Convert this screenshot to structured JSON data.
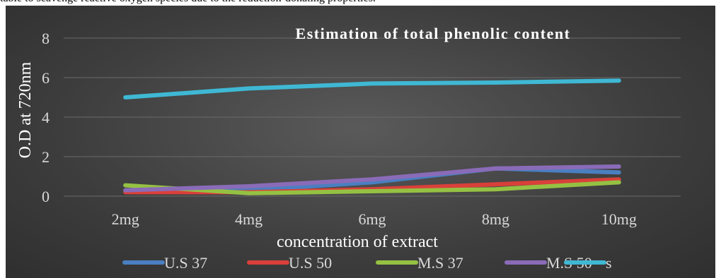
{
  "page_text": "table to scavenge reactive oxygen species due to the reduction-donating properties.",
  "chart_data": {
    "type": "line",
    "title": "Estimation of total phenolic content",
    "xlabel": "concentration  of extract",
    "ylabel": "O.D at 720nm",
    "categories": [
      "2mg",
      "4mg",
      "6mg",
      "8mg",
      "10mg"
    ],
    "ylim": [
      0,
      8
    ],
    "yticks": [
      "0",
      "2",
      "4",
      "6",
      "8"
    ],
    "grid": true,
    "legend": "bottom",
    "series": [
      {
        "name": "U.S 37",
        "color": "#4a7fc1",
        "values": [
          0.25,
          0.3,
          0.7,
          1.4,
          1.2
        ]
      },
      {
        "name": "U.S 50",
        "color": "#d9403a",
        "values": [
          0.2,
          0.2,
          0.35,
          0.6,
          0.85
        ]
      },
      {
        "name": "M.S 37",
        "color": "#95c143",
        "values": [
          0.55,
          0.15,
          0.25,
          0.35,
          0.7
        ]
      },
      {
        "name": "M.S 50",
        "color": "#8a6bb8",
        "values": [
          0.3,
          0.5,
          0.85,
          1.4,
          1.5
        ]
      },
      {
        "name": "s",
        "color": "#3fb8d4",
        "values": [
          5.0,
          5.45,
          5.7,
          5.75,
          5.85
        ]
      }
    ]
  }
}
